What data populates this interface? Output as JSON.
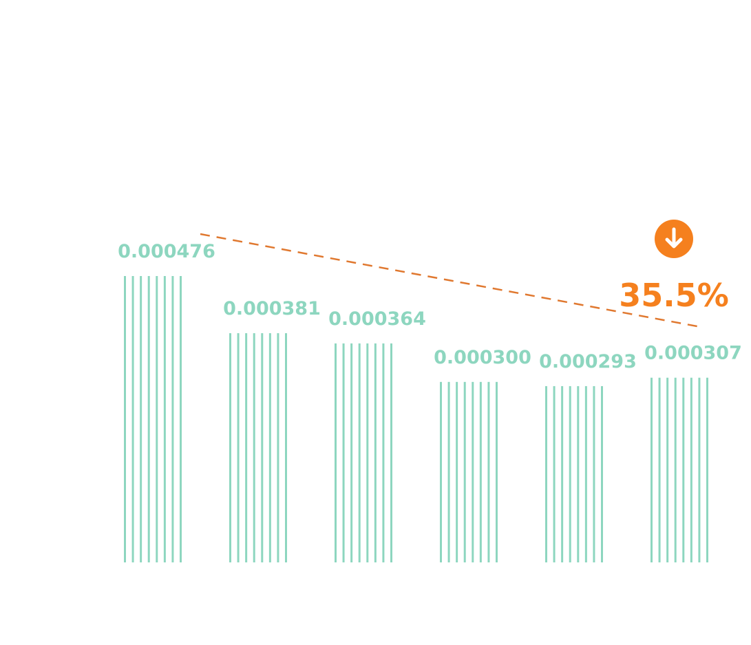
{
  "chart_data": {
    "type": "bar",
    "categories": [
      "",
      "",
      "",
      "",
      "",
      ""
    ],
    "values": [
      0.000476,
      0.000381,
      0.000364,
      0.0003,
      0.000293,
      0.000307
    ],
    "value_labels": [
      "0.000476",
      "0.000381",
      "0.000364",
      "0.000300",
      "0.000293",
      "0.000307"
    ],
    "title": "",
    "xlabel": "",
    "ylabel": "",
    "ylim": [
      0,
      0.000476
    ],
    "grid": false,
    "legend": "none",
    "annotation": {
      "text": "35.5%",
      "direction": "down",
      "icon": "arrow-down-circle-icon",
      "trend_line": "dashed"
    },
    "colors": {
      "bars": "#8dd6bf",
      "labels": "#8dd6bf",
      "accent": "#f5801e",
      "trend": "#e0782f"
    }
  }
}
